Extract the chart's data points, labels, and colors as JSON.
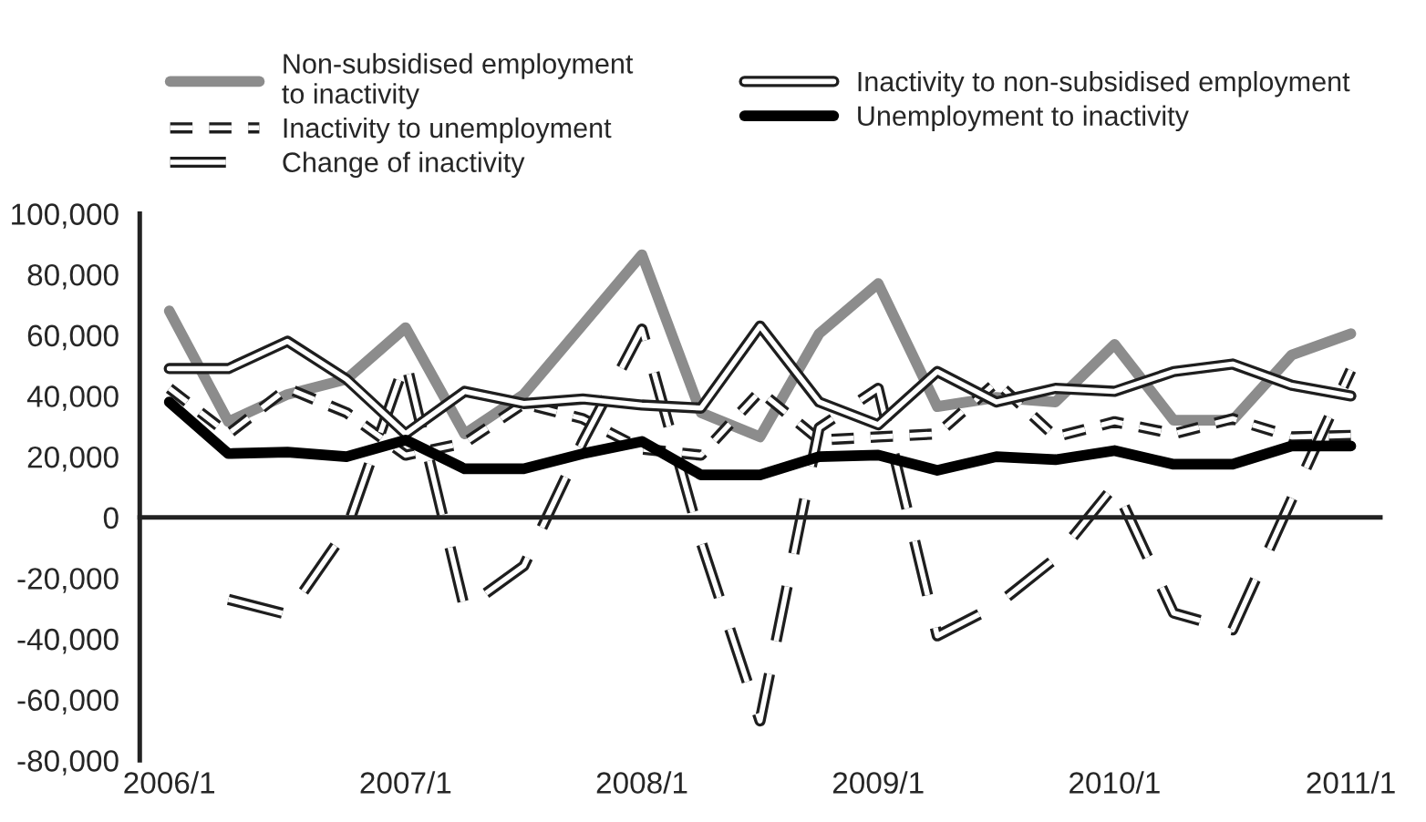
{
  "chart_data": {
    "type": "line",
    "categories": [
      "2006/1",
      null,
      null,
      null,
      "2007/1",
      null,
      null,
      null,
      "2008/1",
      null,
      null,
      null,
      "2009/1",
      null,
      null,
      null,
      "2010/1",
      null,
      null,
      null,
      "2011/1"
    ],
    "series": [
      {
        "name": "Non-subsidised employment\nto inactivity",
        "color": "#8c8c8c",
        "line_style": "solid",
        "values": [
          68000,
          31500,
          40500,
          45500,
          62500,
          27500,
          40500,
          63500,
          86500,
          34500,
          26500,
          60500,
          77000,
          36500,
          39500,
          38000,
          57000,
          32000,
          32000,
          53500,
          60500
        ]
      },
      {
        "name": "Inactivity to unemployment",
        "color": "#1e1e1e",
        "line_style": "dotted",
        "values": [
          42500,
          27500,
          42500,
          34500,
          20500,
          24500,
          37500,
          32500,
          22500,
          20500,
          41500,
          25500,
          26500,
          27500,
          44500,
          26500,
          31500,
          27500,
          32500,
          26500,
          27000
        ]
      },
      {
        "name": "Change of inactivity",
        "color": "#1e1e1e",
        "line_style": "dashed",
        "values": [
          null,
          -27000,
          -32000,
          -4000,
          51500,
          -30000,
          -16000,
          25000,
          62000,
          -8000,
          -67000,
          29500,
          42500,
          -39000,
          -29000,
          -13500,
          10500,
          -31500,
          -37000,
          6000,
          48500
        ]
      },
      {
        "name": "Inactivity to non-subsidised employment",
        "color": "#1e1e1e",
        "line_style": "solid",
        "values": [
          49000,
          49000,
          58000,
          45500,
          27500,
          41500,
          37500,
          39000,
          37000,
          36000,
          63000,
          38000,
          30500,
          48000,
          38000,
          42500,
          41500,
          48000,
          50500,
          43500,
          40000
        ]
      },
      {
        "name": "Unemployment to inactivity",
        "color": "#000000",
        "line_style": "solid",
        "values": [
          38000,
          21000,
          21500,
          20000,
          25500,
          16000,
          16000,
          21000,
          25000,
          14000,
          14000,
          20000,
          20500,
          15500,
          20000,
          19000,
          22000,
          17500,
          17500,
          23500,
          23500
        ]
      }
    ],
    "ylim": [
      -80000,
      100000
    ],
    "yticks": [
      {
        "value": -80000,
        "label": "-80,000"
      },
      {
        "value": -60000,
        "label": "-60,000"
      },
      {
        "value": -40000,
        "label": "-40,000"
      },
      {
        "value": -20000,
        "label": "-20,000"
      },
      {
        "value": 0,
        "label": "0"
      },
      {
        "value": 20000,
        "label": "20,000"
      },
      {
        "value": 40000,
        "label": "40,000"
      },
      {
        "value": 60000,
        "label": "60,000"
      },
      {
        "value": 80000,
        "label": "80,000"
      },
      {
        "value": 100000,
        "label": "100,000"
      }
    ],
    "legend": "top",
    "marker": "none"
  }
}
